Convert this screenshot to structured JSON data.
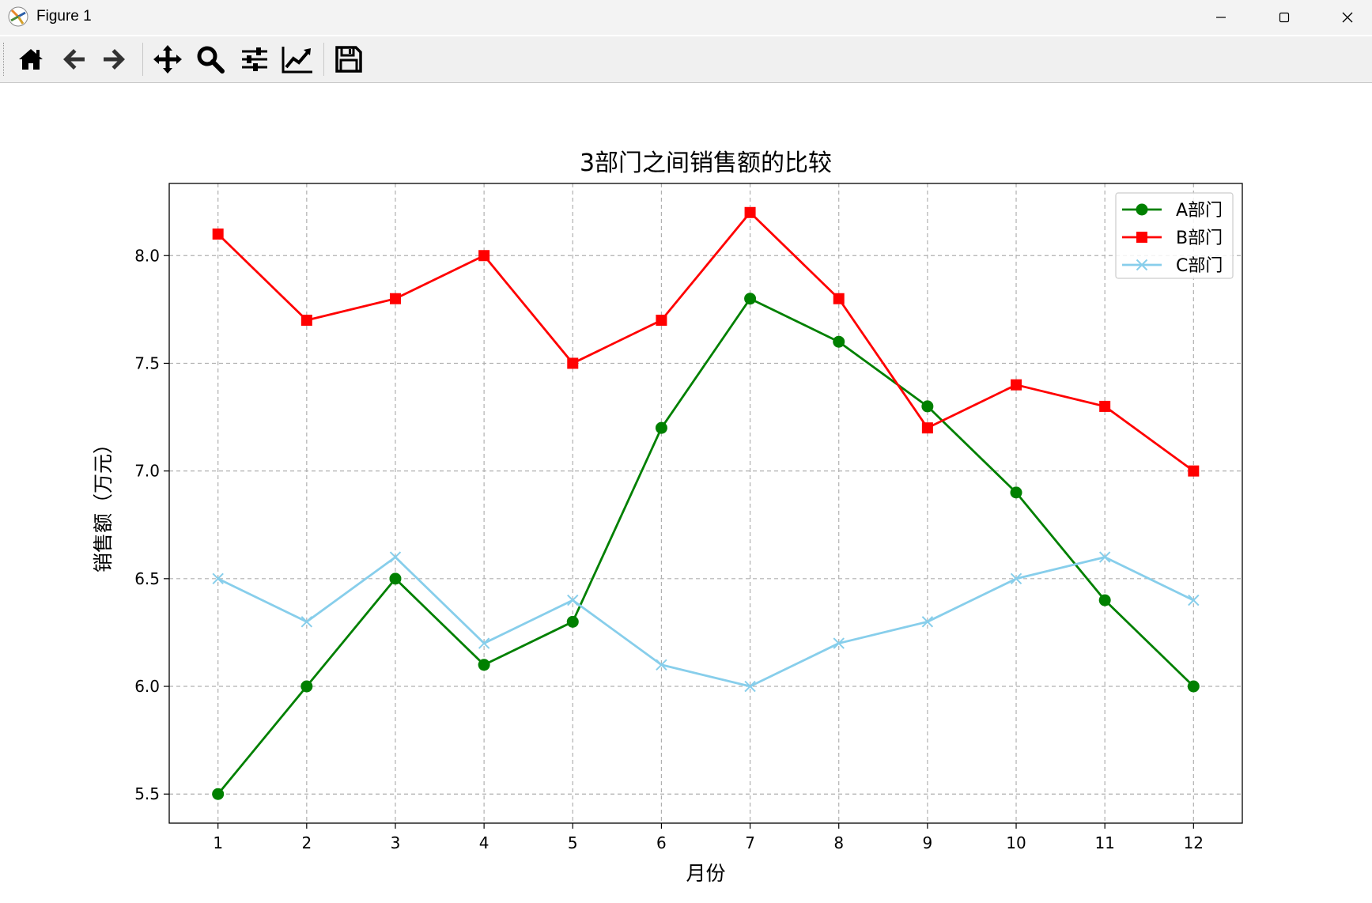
{
  "window": {
    "title": "Figure 1",
    "icons": [
      "matplotlib-logo-icon",
      "minimize-icon",
      "maximize-icon",
      "close-icon"
    ]
  },
  "toolbar": {
    "buttons": [
      {
        "name": "home",
        "icon": "home-icon"
      },
      {
        "name": "back",
        "icon": "arrow-left-icon"
      },
      {
        "name": "forward",
        "icon": "arrow-right-icon"
      },
      {
        "name": "pan",
        "icon": "move-icon"
      },
      {
        "name": "zoom",
        "icon": "zoom-icon"
      },
      {
        "name": "subplots",
        "icon": "sliders-icon"
      },
      {
        "name": "customize",
        "icon": "line-chart-icon"
      },
      {
        "name": "save",
        "icon": "save-icon"
      }
    ]
  },
  "chart_data": {
    "type": "line",
    "title": "3部门之间销售额的比较",
    "xlabel": "月份",
    "ylabel": "销售额（万元）",
    "x": [
      1,
      2,
      3,
      4,
      5,
      6,
      7,
      8,
      9,
      10,
      11,
      12
    ],
    "x_ticks": [
      "1",
      "2",
      "3",
      "4",
      "5",
      "6",
      "7",
      "8",
      "9",
      "10",
      "11",
      "12"
    ],
    "y_ticks": [
      "5.5",
      "6.0",
      "6.5",
      "7.0",
      "7.5",
      "8.0"
    ],
    "y_tick_values": [
      5.5,
      6.0,
      6.5,
      7.0,
      7.5,
      8.0
    ],
    "xlim": [
      0.45,
      12.55
    ],
    "ylim": [
      5.365,
      8.335
    ],
    "grid": true,
    "grid_style": "dashed",
    "legend_position": "top-right",
    "series": [
      {
        "name": "A部门",
        "color": "#008000",
        "marker": "circle",
        "values": [
          5.5,
          6.0,
          6.5,
          6.1,
          6.3,
          7.2,
          7.8,
          7.6,
          7.3,
          6.9,
          6.4,
          6.0
        ]
      },
      {
        "name": "B部门",
        "color": "#ff0000",
        "marker": "square",
        "values": [
          8.1,
          7.7,
          7.8,
          8.0,
          7.5,
          7.7,
          8.2,
          7.8,
          7.2,
          7.4,
          7.3,
          7.0
        ]
      },
      {
        "name": "C部门",
        "color": "#87ceeb",
        "marker": "x",
        "values": [
          6.5,
          6.3,
          6.6,
          6.2,
          6.4,
          6.1,
          6.0,
          6.2,
          6.3,
          6.5,
          6.6,
          6.4
        ]
      }
    ]
  }
}
